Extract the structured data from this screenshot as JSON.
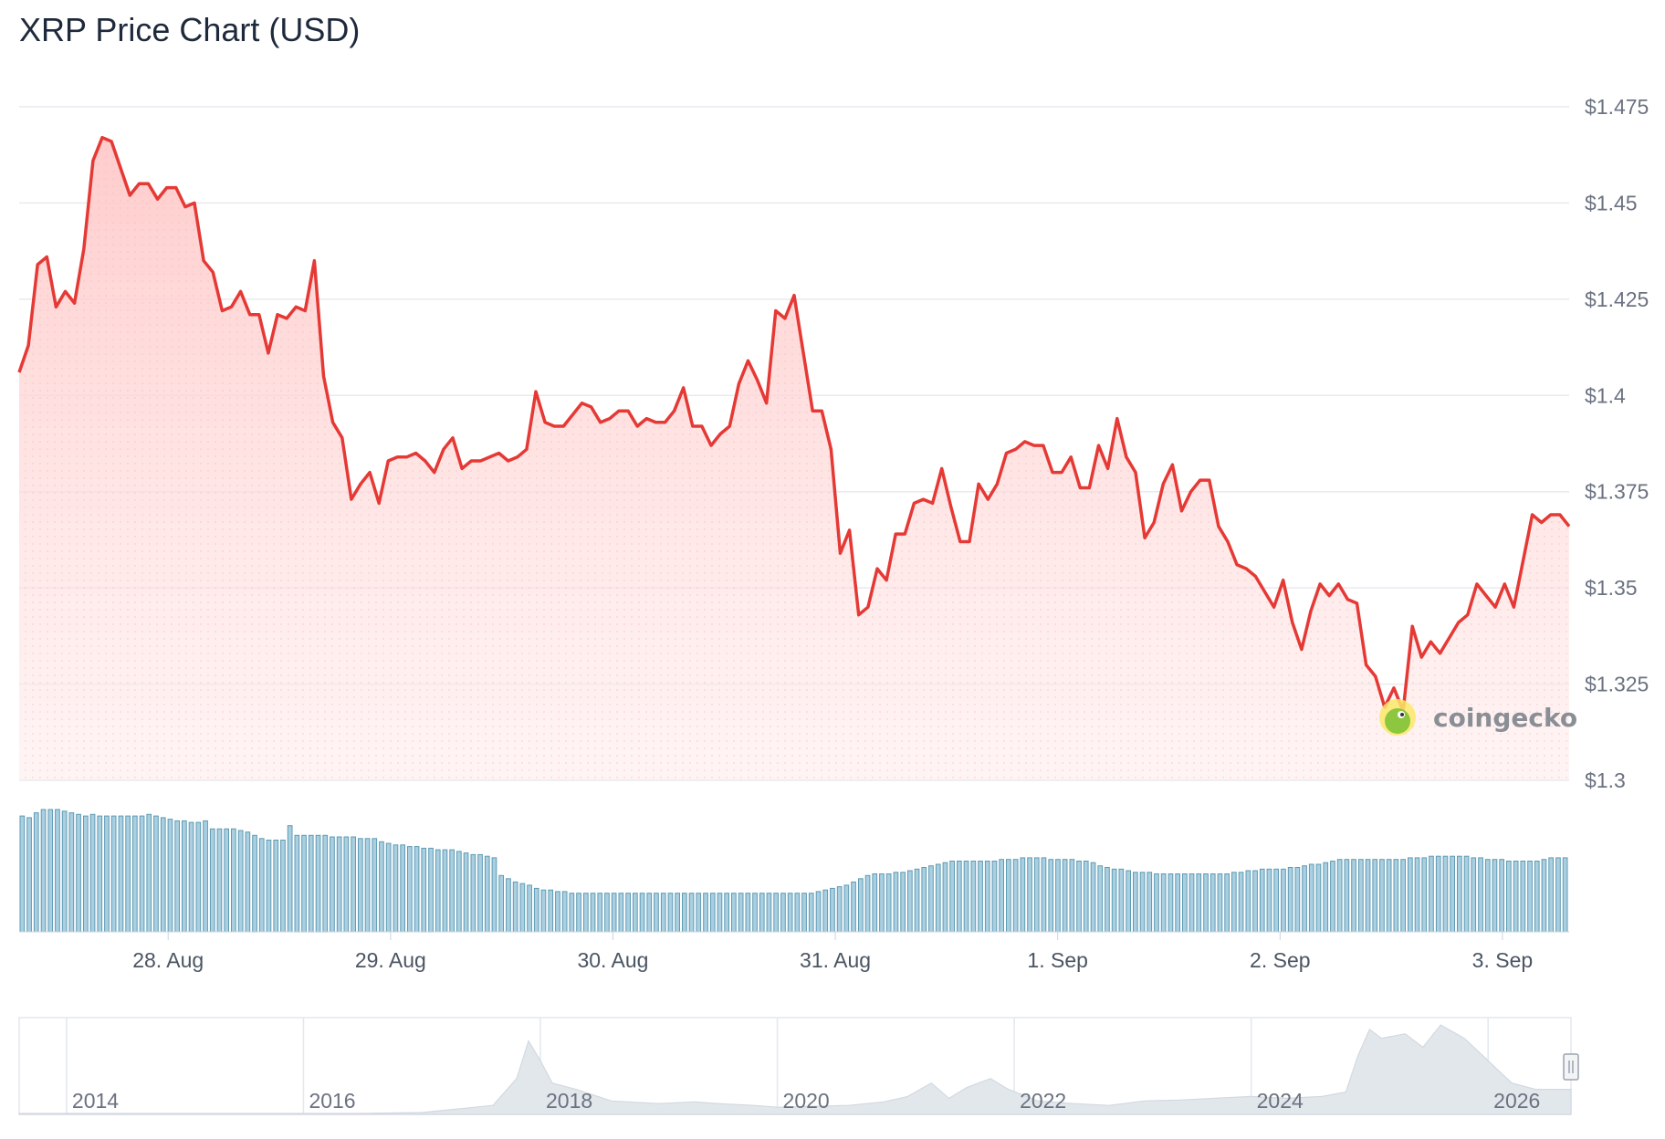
{
  "chart_data": {
    "type": "line",
    "title": "XRP Price Chart (USD)",
    "ylim": [
      1.3,
      1.475
    ],
    "yticks": [
      "$1.3",
      "$1.325",
      "$1.35",
      "$1.375",
      "$1.4",
      "$1.425",
      "$1.45",
      "$1.475"
    ],
    "ytick_values": [
      1.3,
      1.325,
      1.35,
      1.375,
      1.4,
      1.425,
      1.45,
      1.475
    ],
    "xticks": [
      "28. Aug",
      "29. Aug",
      "30. Aug",
      "31. Aug",
      "1. Sep",
      "2. Sep",
      "3. Sep"
    ],
    "xlim_days": [
      27.33,
      34.3
    ],
    "xtick_days": [
      28,
      29,
      30,
      31,
      32,
      33,
      34
    ],
    "series": [
      {
        "color": "#e53935",
        "values": [
          1.406,
          1.413,
          1.434,
          1.436,
          1.423,
          1.427,
          1.424,
          1.438,
          1.461,
          1.467,
          1.466,
          1.459,
          1.452,
          1.455,
          1.455,
          1.451,
          1.454,
          1.454,
          1.449,
          1.45,
          1.435,
          1.432,
          1.422,
          1.423,
          1.427,
          1.421,
          1.421,
          1.411,
          1.421,
          1.42,
          1.423,
          1.422,
          1.435,
          1.405,
          1.393,
          1.389,
          1.373,
          1.377,
          1.38,
          1.372,
          1.383,
          1.384,
          1.384,
          1.385,
          1.383,
          1.38,
          1.386,
          1.389,
          1.381,
          1.383,
          1.383,
          1.384,
          1.385,
          1.383,
          1.384,
          1.386,
          1.401,
          1.393,
          1.392,
          1.392,
          1.395,
          1.398,
          1.397,
          1.393,
          1.394,
          1.396,
          1.396,
          1.392,
          1.394,
          1.393,
          1.393,
          1.396,
          1.402,
          1.392,
          1.392,
          1.387,
          1.39,
          1.392,
          1.403,
          1.409,
          1.404,
          1.398,
          1.422,
          1.42,
          1.426,
          1.411,
          1.396,
          1.396,
          1.386,
          1.359,
          1.365,
          1.343,
          1.345,
          1.355,
          1.352,
          1.364,
          1.364,
          1.372,
          1.373,
          1.372,
          1.381,
          1.371,
          1.362,
          1.362,
          1.377,
          1.373,
          1.377,
          1.385,
          1.386,
          1.388,
          1.387,
          1.387,
          1.38,
          1.38,
          1.384,
          1.376,
          1.376,
          1.387,
          1.381,
          1.394,
          1.384,
          1.38,
          1.363,
          1.367,
          1.377,
          1.382,
          1.37,
          1.375,
          1.378,
          1.378,
          1.366,
          1.362,
          1.356,
          1.355,
          1.353,
          1.349,
          1.345,
          1.352,
          1.341,
          1.334,
          1.344,
          1.351,
          1.348,
          1.351,
          1.347,
          1.346,
          1.33,
          1.327,
          1.319,
          1.324,
          1.318,
          1.34,
          1.332,
          1.336,
          1.333,
          1.337,
          1.341,
          1.343,
          1.351,
          1.348,
          1.345,
          1.351,
          1.345,
          1.357,
          1.369,
          1.367,
          1.369,
          1.369,
          1.366
        ]
      }
    ],
    "volume": [
      0.72,
      0.71,
      0.74,
      0.76,
      0.76,
      0.76,
      0.75,
      0.74,
      0.73,
      0.72,
      0.73,
      0.72,
      0.72,
      0.72,
      0.72,
      0.72,
      0.72,
      0.72,
      0.73,
      0.72,
      0.71,
      0.7,
      0.69,
      0.69,
      0.68,
      0.68,
      0.69,
      0.64,
      0.64,
      0.64,
      0.64,
      0.63,
      0.62,
      0.6,
      0.58,
      0.57,
      0.57,
      0.57,
      0.66,
      0.6,
      0.6,
      0.6,
      0.6,
      0.6,
      0.59,
      0.59,
      0.59,
      0.59,
      0.58,
      0.58,
      0.58,
      0.56,
      0.55,
      0.54,
      0.54,
      0.53,
      0.53,
      0.52,
      0.52,
      0.51,
      0.51,
      0.51,
      0.5,
      0.49,
      0.48,
      0.48,
      0.47,
      0.46,
      0.35,
      0.33,
      0.31,
      0.3,
      0.29,
      0.27,
      0.26,
      0.26,
      0.25,
      0.25,
      0.24,
      0.24,
      0.24,
      0.24,
      0.24,
      0.24,
      0.24,
      0.24,
      0.24,
      0.24,
      0.24,
      0.24,
      0.24,
      0.24,
      0.24,
      0.24,
      0.24,
      0.24,
      0.24,
      0.24,
      0.24,
      0.24,
      0.24,
      0.24,
      0.24,
      0.24,
      0.24,
      0.24,
      0.24,
      0.24,
      0.24,
      0.24,
      0.24,
      0.24,
      0.24,
      0.25,
      0.26,
      0.27,
      0.28,
      0.29,
      0.31,
      0.33,
      0.35,
      0.36,
      0.36,
      0.36,
      0.37,
      0.37,
      0.38,
      0.39,
      0.4,
      0.41,
      0.42,
      0.43,
      0.44,
      0.44,
      0.44,
      0.44,
      0.44,
      0.44,
      0.44,
      0.45,
      0.45,
      0.45,
      0.46,
      0.46,
      0.46,
      0.46,
      0.45,
      0.45,
      0.45,
      0.45,
      0.44,
      0.44,
      0.43,
      0.41,
      0.4,
      0.39,
      0.39,
      0.38,
      0.37,
      0.37,
      0.37,
      0.36,
      0.36,
      0.36,
      0.36,
      0.36,
      0.36,
      0.36,
      0.36,
      0.36,
      0.36,
      0.36,
      0.37,
      0.37,
      0.38,
      0.38,
      0.39,
      0.39,
      0.39,
      0.39,
      0.4,
      0.4,
      0.41,
      0.42,
      0.42,
      0.43,
      0.44,
      0.45,
      0.45,
      0.45,
      0.45,
      0.45,
      0.45,
      0.45,
      0.45,
      0.45,
      0.45,
      0.46,
      0.46,
      0.46,
      0.47,
      0.47,
      0.47,
      0.47,
      0.47,
      0.47,
      0.46,
      0.46,
      0.45,
      0.45,
      0.45,
      0.44,
      0.44,
      0.44,
      0.44,
      0.44,
      0.45,
      0.46,
      0.46,
      0.46
    ],
    "navigator": {
      "labels": [
        "2014",
        "2016",
        "2018",
        "2020",
        "2022",
        "2024",
        "2026"
      ],
      "label_years": [
        2014,
        2016,
        2018,
        2020,
        2022,
        2024,
        2026
      ],
      "year_range": [
        2013.6,
        2026.7
      ],
      "years": [
        2013.6,
        2014.0,
        2014.5,
        2015.0,
        2015.5,
        2016.0,
        2016.5,
        2017.0,
        2017.3,
        2017.6,
        2017.8,
        2017.9,
        2018.0,
        2018.1,
        2018.3,
        2018.6,
        2019.0,
        2019.3,
        2019.5,
        2019.8,
        2020.0,
        2020.3,
        2020.6,
        2020.9,
        2021.1,
        2021.3,
        2021.45,
        2021.6,
        2021.8,
        2021.95,
        2022.2,
        2022.5,
        2022.8,
        2023.1,
        2023.4,
        2023.7,
        2024.0,
        2024.3,
        2024.6,
        2024.8,
        2024.9,
        2025.0,
        2025.1,
        2025.3,
        2025.45,
        2025.6,
        2025.8,
        2026.0,
        2026.2,
        2026.4,
        2026.7
      ],
      "values": [
        0.01,
        0.01,
        0.01,
        0.01,
        0.01,
        0.01,
        0.01,
        0.02,
        0.06,
        0.1,
        0.4,
        0.82,
        0.6,
        0.35,
        0.28,
        0.15,
        0.12,
        0.14,
        0.12,
        0.1,
        0.08,
        0.09,
        0.1,
        0.14,
        0.2,
        0.35,
        0.18,
        0.3,
        0.4,
        0.28,
        0.15,
        0.12,
        0.1,
        0.15,
        0.16,
        0.18,
        0.2,
        0.18,
        0.2,
        0.25,
        0.65,
        0.95,
        0.85,
        0.9,
        0.75,
        1.0,
        0.85,
        0.6,
        0.35,
        0.28,
        0.28
      ]
    }
  },
  "watermark": {
    "text": "coingecko",
    "icon": "gecko-logo-icon"
  },
  "colors": {
    "line": "#e53935",
    "fill_top": "#ffcfcf",
    "volume": "#a9cfe0",
    "navigator": "#dfe4ea"
  }
}
